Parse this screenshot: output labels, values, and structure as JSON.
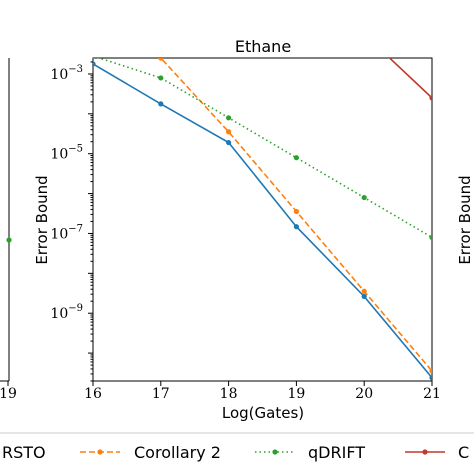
{
  "chart_data": {
    "type": "line",
    "title": "Ethane",
    "xlabel": "Log(Gates)",
    "ylabel": "Error Bound",
    "x_ticks": [
      16,
      17,
      18,
      19,
      20,
      21
    ],
    "x_tick_labels": [
      "16",
      "17",
      "18",
      "19",
      "20",
      "21"
    ],
    "xlim": [
      16,
      21
    ],
    "y_scale": "log",
    "ylim_log10": [
      -10.7,
      -2.6
    ],
    "y_ticks_log10": [
      -9,
      -7,
      -5,
      -3
    ],
    "y_tick_labels": [
      {
        "base": "10",
        "exp": "−9"
      },
      {
        "base": "10",
        "exp": "−7"
      },
      {
        "base": "10",
        "exp": "−5"
      },
      {
        "base": "10",
        "exp": "−3"
      }
    ],
    "series": [
      {
        "key": "blue",
        "color": "#1f77b4",
        "dash": "",
        "x": [
          16,
          17,
          18,
          19,
          20,
          21
        ],
        "log10_y": [
          -2.75,
          -3.75,
          -4.72,
          -6.83,
          -8.58,
          -10.62
        ]
      },
      {
        "key": "orange",
        "name": "Corollary 2",
        "color": "#ff7f0e",
        "dash": "6,3",
        "x": [
          16,
          17,
          18,
          19,
          20,
          21
        ],
        "log10_y": [
          -1.6,
          -2.6,
          -4.45,
          -6.45,
          -8.45,
          -10.45
        ]
      },
      {
        "key": "green",
        "name": "qDRIFT",
        "color": "#2ca02c",
        "dash": "1.5,3",
        "x": [
          16,
          17,
          18,
          19,
          20,
          21
        ],
        "log10_y": [
          -2.55,
          -3.1,
          -4.1,
          -5.1,
          -6.1,
          -7.1
        ]
      },
      {
        "key": "red",
        "name": "C",
        "color": "#c0392b",
        "dash": "",
        "x": [
          20,
          21
        ],
        "log10_y": [
          -2.0,
          -3.6
        ]
      }
    ],
    "left_panel": {
      "tick_label": "19",
      "green_marker_log10_y": -7.0
    },
    "right_panel": {
      "ylabel": "Error Bound"
    }
  },
  "legend": {
    "items": [
      {
        "label": "RSTO",
        "color": "#1f77b4",
        "dash": ""
      },
      {
        "label": "Corollary 2",
        "color": "#ff7f0e",
        "dash": "6,3"
      },
      {
        "label": "qDRIFT",
        "color": "#2ca02c",
        "dash": "1.5,3"
      },
      {
        "label": "C",
        "color": "#c0392b",
        "dash": ""
      }
    ]
  }
}
